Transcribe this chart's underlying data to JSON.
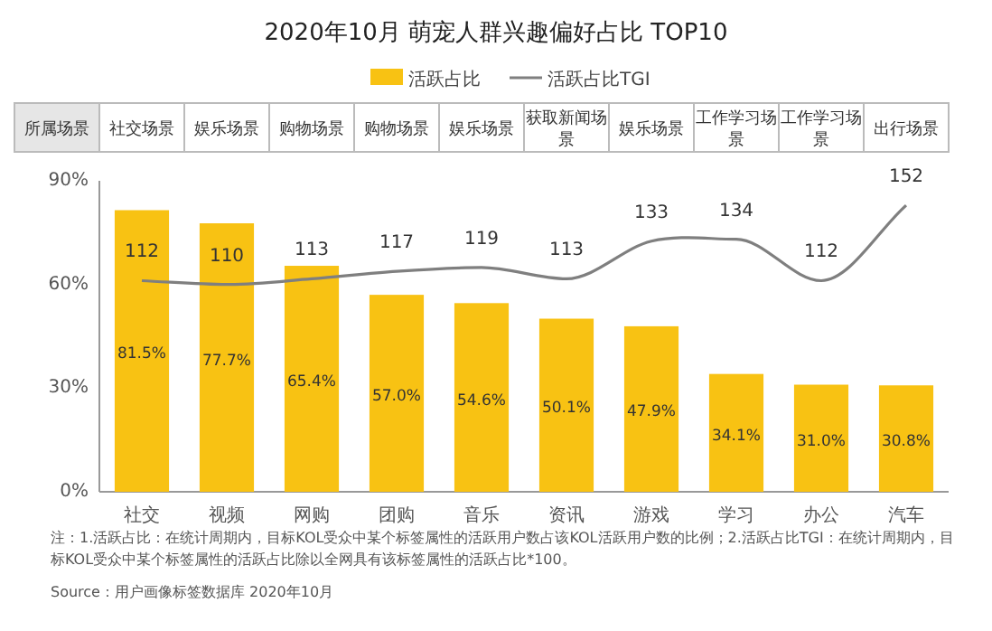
{
  "chart_data": {
    "type": "bar",
    "title": "2020年10月 萌宠人群兴趣偏好占比 TOP10",
    "categories": [
      "社交",
      "视频",
      "网购",
      "团购",
      "音乐",
      "资讯",
      "游戏",
      "学习",
      "办公",
      "汽车"
    ],
    "series": [
      {
        "name": "活跃占比",
        "color": "#f8c213",
        "values": [
          81.5,
          77.7,
          65.4,
          57.0,
          54.6,
          50.1,
          47.9,
          34.1,
          31.0,
          30.8
        ],
        "value_labels": [
          "81.5%",
          "77.7%",
          "65.4%",
          "57.0%",
          "54.6%",
          "50.1%",
          "47.9%",
          "34.1%",
          "31.0%",
          "30.8%"
        ]
      },
      {
        "name": "活跃占比TGI",
        "type": "line",
        "axis": "y2",
        "color": "#7f7f7f",
        "values": [
          112,
          110,
          113,
          117,
          119,
          113,
          133,
          134,
          112,
          152
        ],
        "value_labels": [
          "112",
          "110",
          "113",
          "117",
          "119",
          "113",
          "133",
          "134",
          "112",
          "152"
        ]
      }
    ],
    "ylim": [
      0,
      90
    ],
    "yticks": [
      {
        "value": 0,
        "label": "0%"
      },
      {
        "value": 30,
        "label": "30%"
      },
      {
        "value": 60,
        "label": "60%"
      },
      {
        "value": 90,
        "label": "90%"
      }
    ],
    "y2lim": [
      0,
      165
    ],
    "tick_labels": "y",
    "grid": false,
    "legend": "top",
    "marker": "none",
    "line_style": "solid",
    "annotations": [
      "所属场景",
      "社交场景",
      "娱乐场景",
      "购物场景",
      "购物场景",
      "娱乐场景",
      "获取新闻场景",
      "娱乐场景",
      "工作学习场景",
      "工作学习场景",
      "出行场景",
      "注：1.活跃占比：在统计周期内，目标KOL受众中某个标签属性的活跃用户数占该KOL活跃用户数的比例；2.活跃占比TGI：在统计周期内，目标KOL受众中某个标签属性的活跃占比除以全网具有该标签属性的活跃占比*100。",
      "Source：用户画像标签数据库 2020年10月"
    ]
  }
}
